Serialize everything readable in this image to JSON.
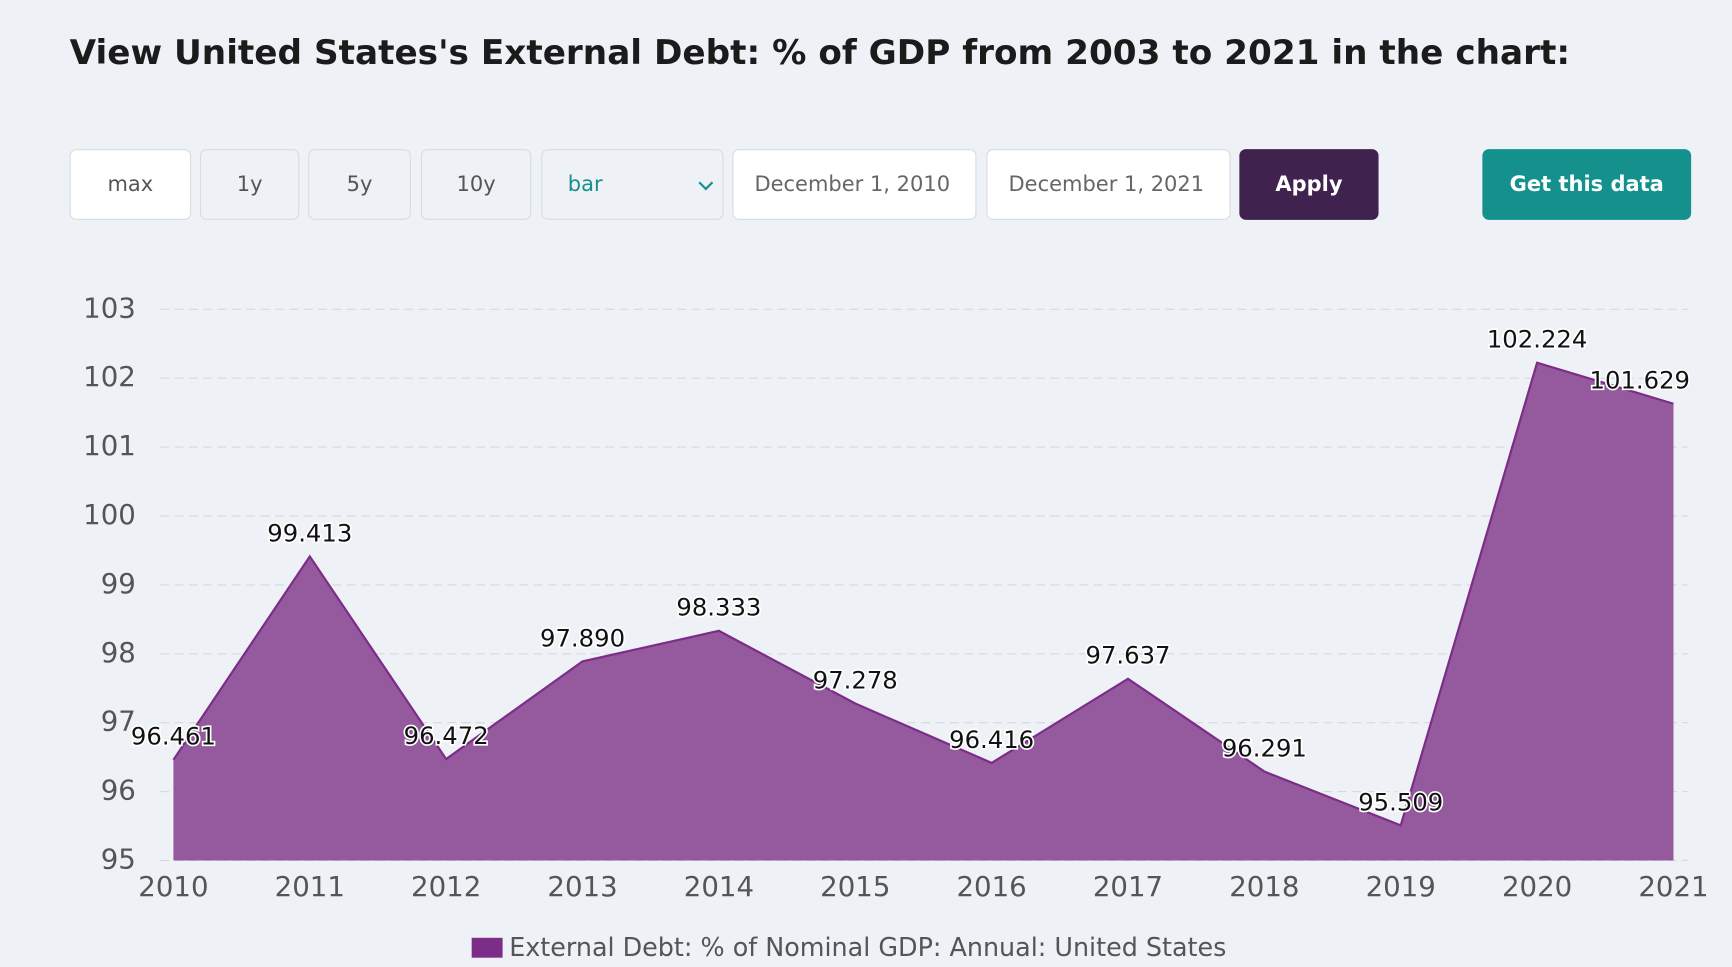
{
  "toolbar": {
    "range_buttons": [
      "max",
      "1y",
      "5y",
      "10y"
    ],
    "chart_type": "bar",
    "start_date": "December 1, 2010",
    "end_date": "December 1, 2021",
    "apply": "Apply",
    "get_data": "Get this data"
  },
  "chart_data": {
    "type": "area",
    "title": "View United States's External Debt: % of GDP from 2003 to 2021 in the chart:",
    "categories": [
      "2010",
      "2011",
      "2012",
      "2013",
      "2014",
      "2015",
      "2016",
      "2017",
      "2018",
      "2019",
      "2020",
      "2021"
    ],
    "series": [
      {
        "name": "External Debt: % of Nominal GDP: Annual: United States",
        "color": "#7b2d87",
        "fill": "#955a9e",
        "values": [
          96.461,
          99.413,
          96.472,
          97.89,
          98.333,
          97.278,
          96.416,
          97.637,
          96.291,
          95.509,
          102.224,
          101.629
        ],
        "value_labels": [
          "96.461",
          "99.413",
          "96.472",
          "97.890",
          "98.333",
          "97.278",
          "96.416",
          "97.637",
          "96.291",
          "95.509",
          "102.224",
          "101.629"
        ]
      }
    ],
    "ylim": [
      95,
      103
    ],
    "yticks": [
      95,
      96,
      97,
      98,
      99,
      100,
      101,
      102,
      103
    ],
    "grid": true
  }
}
